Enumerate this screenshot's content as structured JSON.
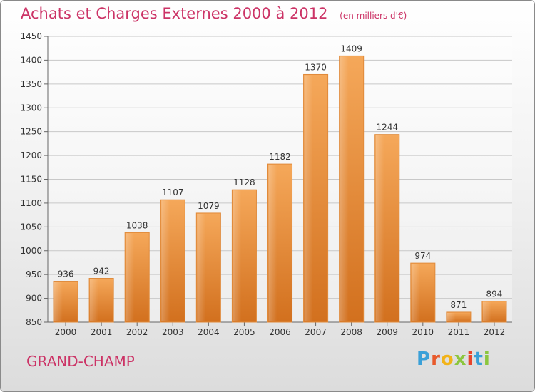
{
  "title": "Achats et Charges Externes 2000 à 2012",
  "subtitle": "(en milliers d'€)",
  "commune": "GRAND-CHAMP",
  "logo": {
    "letters": [
      {
        "char": "P",
        "color": "#3aa0d8"
      },
      {
        "char": "r",
        "color": "#e85a2c"
      },
      {
        "char": "o",
        "color": "#f2b319"
      },
      {
        "char": "x",
        "color": "#8cc63e"
      },
      {
        "char": "i",
        "color": "#e8452c"
      },
      {
        "char": "t",
        "color": "#3aa0d8"
      },
      {
        "char": "i",
        "color": "#8cc63e"
      }
    ]
  },
  "chart_data": {
    "type": "bar",
    "categories": [
      "2000",
      "2001",
      "2002",
      "2003",
      "2004",
      "2005",
      "2006",
      "2007",
      "2008",
      "2009",
      "2010",
      "2011",
      "2012"
    ],
    "values": [
      936,
      942,
      1038,
      1107,
      1079,
      1128,
      1182,
      1370,
      1409,
      1244,
      974,
      871,
      894
    ],
    "ylim": [
      850,
      1450
    ],
    "yticks": [
      850,
      900,
      950,
      1000,
      1050,
      1100,
      1150,
      1200,
      1250,
      1300,
      1350,
      1400,
      1450
    ],
    "grid": true,
    "bar_color": "#f0963a"
  }
}
